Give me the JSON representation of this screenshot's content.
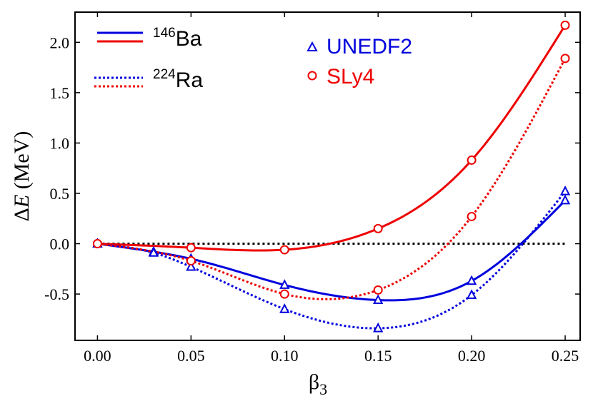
{
  "chart_data": {
    "type": "line",
    "xlabel_base": "β",
    "xlabel_sub": "3",
    "ylabel_prefix": "Δ",
    "ylabel_var": "E",
    "ylabel_unit": " (MeV)",
    "xlim": [
      -0.012,
      0.258
    ],
    "ylim": [
      -0.96,
      2.3
    ],
    "x_ticks": [
      0.0,
      0.05,
      0.1,
      0.15,
      0.2,
      0.25
    ],
    "x_tick_labels": [
      "0.00",
      "0.05",
      "0.10",
      "0.15",
      "0.20",
      "0.25"
    ],
    "y_ticks": [
      -0.5,
      0.0,
      0.5,
      1.0,
      1.5,
      2.0
    ],
    "y_tick_labels": [
      "-0.5",
      "0.0",
      "0.5",
      "1.0",
      "1.5",
      "2.0"
    ],
    "grid": false,
    "reference_line": {
      "y": 0.0,
      "x_range": [
        0.0,
        0.25
      ],
      "style": "dotted",
      "color": "#000000"
    },
    "colors": {
      "unedf2": "#0000dd",
      "sly4": "#ee0000"
    },
    "series": [
      {
        "id": "ba-unedf2",
        "nucleus": "Ba",
        "model": "UNEDF2",
        "line": "solid",
        "marker": "triangle",
        "x": [
          0.0,
          0.03,
          0.05,
          0.1,
          0.15,
          0.2,
          0.25
        ],
        "y": [
          0.0,
          -0.08,
          -0.15,
          -0.41,
          -0.56,
          -0.37,
          0.43
        ]
      },
      {
        "id": "ba-sly4",
        "nucleus": "Ba",
        "model": "SLy4",
        "line": "solid",
        "marker": "circle",
        "x": [
          0.0,
          0.05,
          0.1,
          0.15,
          0.2,
          0.25
        ],
        "y": [
          0.0,
          -0.04,
          -0.06,
          0.15,
          0.83,
          2.17
        ]
      },
      {
        "id": "ra-unedf2",
        "nucleus": "Ra",
        "model": "UNEDF2",
        "line": "dotted",
        "marker": "triangle",
        "x": [
          0.0,
          0.03,
          0.05,
          0.1,
          0.15,
          0.2,
          0.25
        ],
        "y": [
          0.0,
          -0.09,
          -0.23,
          -0.65,
          -0.84,
          -0.51,
          0.52
        ]
      },
      {
        "id": "ra-sly4",
        "nucleus": "Ra",
        "model": "SLy4",
        "line": "dotted",
        "marker": "circle",
        "x": [
          0.0,
          0.05,
          0.1,
          0.15,
          0.2,
          0.25
        ],
        "y": [
          0.0,
          -0.17,
          -0.5,
          -0.46,
          0.27,
          1.84
        ]
      }
    ],
    "legend_lines": [
      {
        "mass": "146",
        "element": "Ba",
        "style": "solid"
      },
      {
        "mass": "224",
        "element": "Ra",
        "style": "dotted"
      }
    ],
    "legend_markers": [
      {
        "label": "UNEDF2",
        "marker": "triangle",
        "color": "#0000dd"
      },
      {
        "label": "SLy4",
        "marker": "circle",
        "color": "#ee0000"
      }
    ]
  }
}
